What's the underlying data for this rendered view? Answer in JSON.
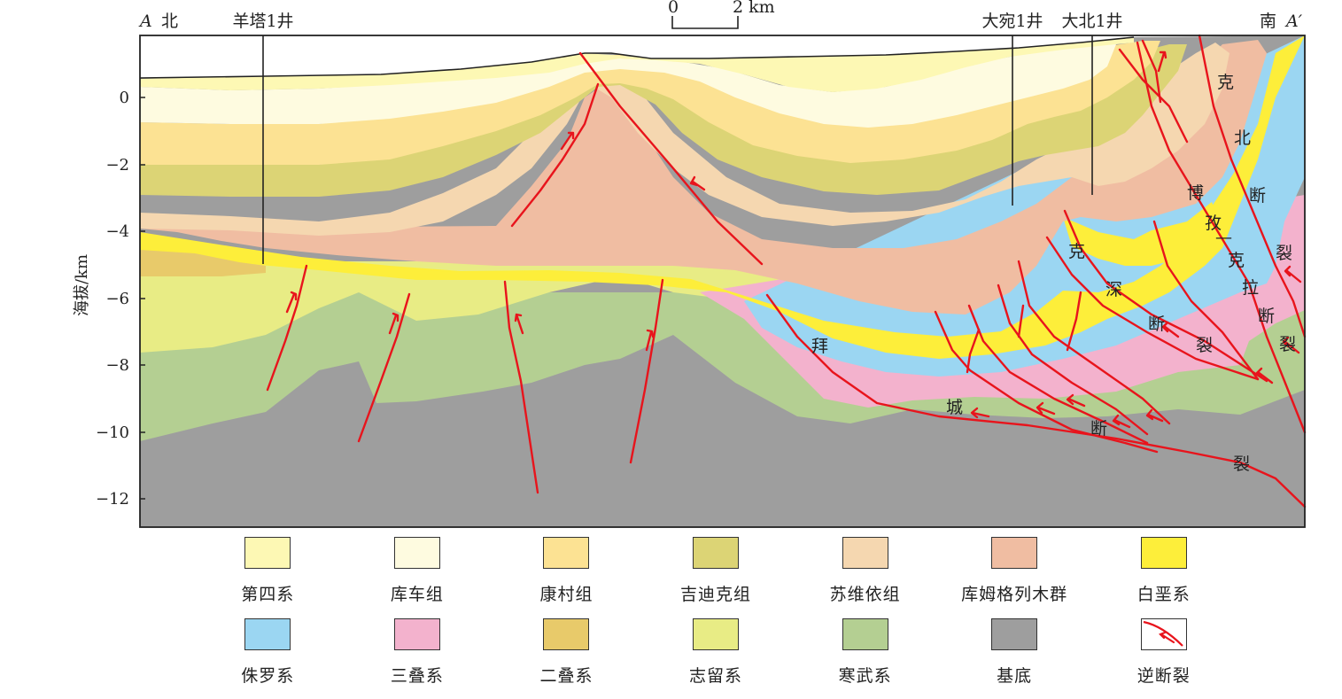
{
  "header": {
    "left_end": "A",
    "north": "北",
    "south": "南",
    "right_end": "A′",
    "wells": [
      "羊塔1井",
      "大宛1井",
      "大北1井"
    ],
    "scale_zero": "0",
    "scale_dist": "2 km"
  },
  "axis": {
    "label": "海拔/km",
    "ticks": [
      "0",
      "−2",
      "−4",
      "−6",
      "−8",
      "−10",
      "−12"
    ]
  },
  "fault_labels": {
    "baicheng": [
      "拜",
      "城",
      "断",
      "裂"
    ],
    "keshen": [
      "克",
      "深",
      "断",
      "裂"
    ],
    "bozikela": [
      "博",
      "孜",
      "—",
      "克",
      "拉",
      "断",
      "裂"
    ],
    "kebei": [
      "克",
      "北",
      "断",
      "裂"
    ]
  },
  "colors": {
    "quaternary": "#fdf8b4",
    "kuche": "#fefbe0",
    "kangcun": "#fce293",
    "jidike": "#dcd475",
    "suweiyi": "#f5d7b0",
    "kumugeliemu": "#f0bda2",
    "cretaceous": "#fdee3a",
    "jurassic": "#9bd6f2",
    "triassic": "#f3b2cd",
    "permian": "#e8ca6a",
    "silurian": "#e8ec85",
    "cambrian_ordovician": "#b4cf92",
    "basement": "#9e9e9e",
    "fault": "#e8141c"
  },
  "legend": [
    {
      "label": "第四系",
      "color": "#fdf8b4"
    },
    {
      "label": "库车组",
      "color": "#fefbe0"
    },
    {
      "label": "康村组",
      "color": "#fce293"
    },
    {
      "label": "吉迪克组",
      "color": "#dcd475"
    },
    {
      "label": "苏维依组",
      "color": "#f5d7b0"
    },
    {
      "label": "库姆格列木群",
      "color": "#f0bda2"
    },
    {
      "label": "白垩系",
      "color": "#fdee3a"
    },
    {
      "label": "侏罗系",
      "color": "#9bd6f2"
    },
    {
      "label": "三叠系",
      "color": "#f3b2cd"
    },
    {
      "label": "二叠系",
      "color": "#e8ca6a"
    },
    {
      "label": "志留系",
      "color": "#e8ec85"
    },
    {
      "label": "寒武系",
      "color": "#b4cf92"
    },
    {
      "label": "基底",
      "color": "#9e9e9e"
    },
    {
      "label": "逆断裂",
      "icon": "reverse-fault-icon"
    }
  ]
}
